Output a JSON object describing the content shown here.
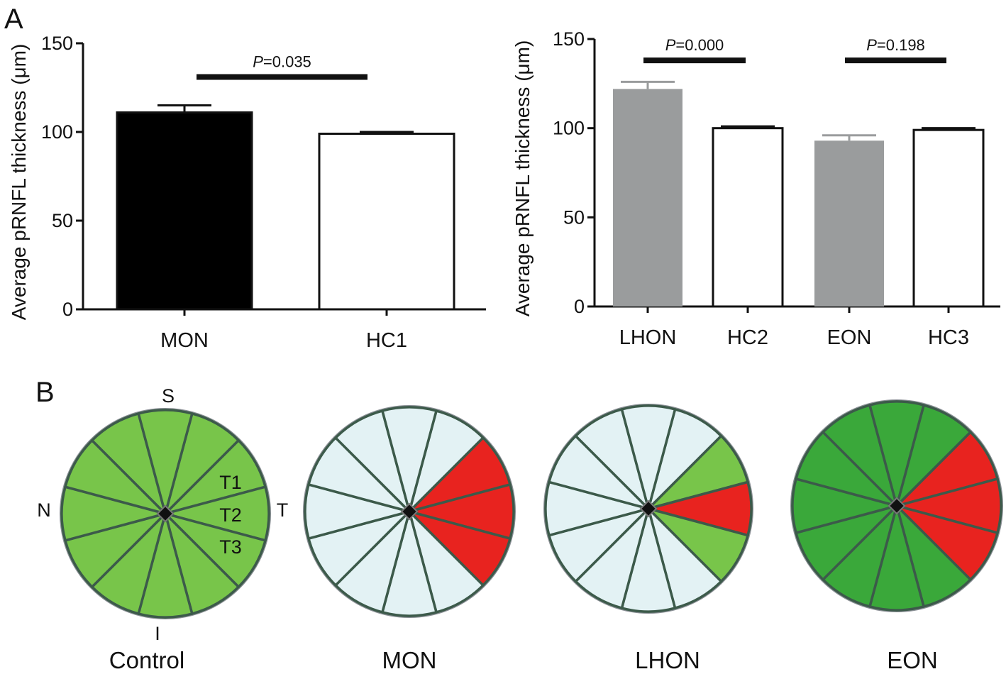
{
  "panels": {
    "a": "A",
    "b": "B"
  },
  "chart_data": [
    {
      "type": "bar",
      "ylabel": "Average pRNFL thickness (μm)",
      "ylim": [
        0,
        150
      ],
      "yticks": [
        "0",
        "50",
        "100",
        "150"
      ],
      "categories": [
        "MON",
        "HC1"
      ],
      "values": [
        111,
        99
      ],
      "errors": [
        4,
        1
      ],
      "colors": [
        "#000000",
        "#ffffff"
      ],
      "comparisons": [
        {
          "from": 0,
          "to": 1,
          "label_p": "P",
          "label_val": "=0.035",
          "y": 131
        }
      ]
    },
    {
      "type": "bar",
      "ylabel": "Average pRNFL thickness (μm)",
      "ylim": [
        0,
        150
      ],
      "yticks": [
        "0",
        "50",
        "100",
        "150"
      ],
      "categories": [
        "LHON",
        "HC2",
        "EON",
        "HC3"
      ],
      "values": [
        122,
        100,
        93,
        99
      ],
      "errors": [
        4,
        1,
        3,
        1
      ],
      "colors": [
        "#9a9c9d",
        "#ffffff",
        "#9a9c9d",
        "#ffffff"
      ],
      "comparisons": [
        {
          "from": 0,
          "to": 1,
          "label_p": "P",
          "label_val": "=0.000",
          "y": 138
        },
        {
          "from": 2,
          "to": 3,
          "label_p": "P",
          "label_val": "=0.198",
          "y": 138
        }
      ]
    }
  ],
  "diagrams": [
    {
      "caption": "Control",
      "sectors": [
        "lightgreen",
        "lightgreen",
        "lightgreen",
        "lightgreen",
        "lightgreen",
        "lightgreen",
        "lightgreen",
        "lightgreen",
        "lightgreen",
        "lightgreen",
        "lightgreen",
        "lightgreen"
      ]
    },
    {
      "caption": "MON",
      "sectors": [
        "pale",
        "red",
        "red",
        "red",
        "pale",
        "pale",
        "pale",
        "pale",
        "pale",
        "pale",
        "pale",
        "pale"
      ]
    },
    {
      "caption": "LHON",
      "sectors": [
        "pale",
        "lightgreen",
        "red",
        "lightgreen",
        "pale",
        "pale",
        "pale",
        "pale",
        "pale",
        "pale",
        "pale",
        "pale"
      ]
    },
    {
      "caption": "EON",
      "sectors": [
        "green",
        "red",
        "red",
        "red",
        "green",
        "green",
        "green",
        "green",
        "green",
        "green",
        "green",
        "green"
      ]
    }
  ],
  "orientation": {
    "superior": "S",
    "inferior": "I",
    "nasal": "N",
    "temporal": "T"
  },
  "sector_labels": [
    "T1",
    "T2",
    "T3"
  ],
  "colors": {
    "lightgreen": "#78c54a",
    "green": "#3aa83a",
    "red": "#e8231f",
    "pale": "#e3f2f4",
    "border": "#3c5a4a"
  }
}
